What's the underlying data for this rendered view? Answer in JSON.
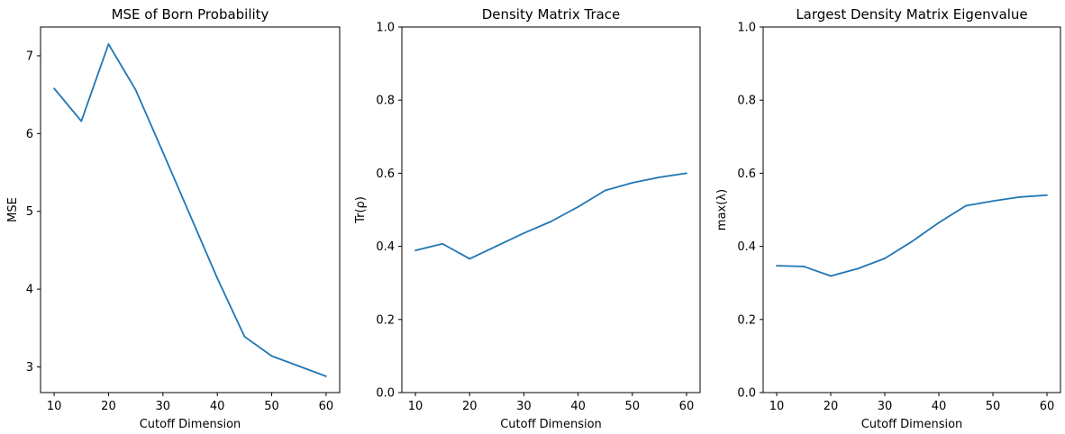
{
  "chart_data": [
    {
      "type": "line",
      "title": "MSE of Born Probability",
      "xlabel": "Cutoff Dimension",
      "ylabel": "MSE",
      "xlim": [
        7.5,
        62.5
      ],
      "ylim": [
        2.67,
        7.37
      ],
      "xticks": [
        10,
        20,
        30,
        40,
        50,
        60
      ],
      "yticks": [
        3,
        4,
        5,
        6,
        7
      ],
      "x": [
        10,
        15,
        20,
        25,
        30,
        35,
        40,
        45,
        50,
        55,
        60
      ],
      "series": [
        {
          "values": [
            6.58,
            6.16,
            7.15,
            6.56,
            5.76,
            4.95,
            4.14,
            3.39,
            3.14,
            3.01,
            2.88
          ],
          "color": "#1f77b4"
        }
      ]
    },
    {
      "type": "line",
      "title": "Density Matrix Trace",
      "xlabel": "Cutoff Dimension",
      "ylabel": "Tr(ρ)",
      "xlim": [
        7.5,
        62.5
      ],
      "ylim": [
        0.0,
        1.0
      ],
      "xticks": [
        10,
        20,
        30,
        40,
        50,
        60
      ],
      "yticks": [
        0.0,
        0.2,
        0.4,
        0.6,
        0.8,
        1.0
      ],
      "x": [
        10,
        15,
        20,
        25,
        30,
        35,
        40,
        45,
        50,
        55,
        60
      ],
      "series": [
        {
          "values": [
            0.389,
            0.407,
            0.366,
            0.401,
            0.436,
            0.468,
            0.508,
            0.553,
            0.574,
            0.589,
            0.6
          ],
          "color": "#1f77b4"
        }
      ]
    },
    {
      "type": "line",
      "title": "Largest Density Matrix Eigenvalue",
      "xlabel": "Cutoff Dimension",
      "ylabel": "max(λ)",
      "xlim": [
        7.5,
        62.5
      ],
      "ylim": [
        0.0,
        1.0
      ],
      "xticks": [
        10,
        20,
        30,
        40,
        50,
        60
      ],
      "yticks": [
        0.0,
        0.2,
        0.4,
        0.6,
        0.8,
        1.0
      ],
      "x": [
        10,
        15,
        20,
        25,
        30,
        35,
        40,
        45,
        50,
        55,
        60
      ],
      "series": [
        {
          "values": [
            0.347,
            0.345,
            0.319,
            0.339,
            0.367,
            0.413,
            0.465,
            0.511,
            0.524,
            0.535,
            0.54
          ],
          "color": "#1f77b4"
        }
      ]
    }
  ]
}
